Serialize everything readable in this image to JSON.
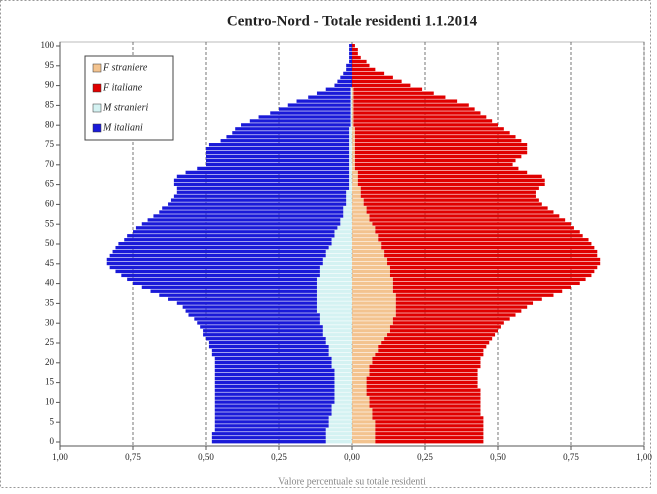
{
  "chart_data": {
    "type": "pyramid",
    "title": "Centro-Nord - Totale residenti 1.1.2014",
    "x_label": "Valore percentuale su totale residenti",
    "y": [
      0,
      1,
      2,
      3,
      4,
      5,
      6,
      7,
      8,
      9,
      10,
      11,
      12,
      13,
      14,
      15,
      16,
      17,
      18,
      19,
      20,
      21,
      22,
      23,
      24,
      25,
      26,
      27,
      28,
      29,
      30,
      31,
      32,
      33,
      34,
      35,
      36,
      37,
      38,
      39,
      40,
      41,
      42,
      43,
      44,
      45,
      46,
      47,
      48,
      49,
      50,
      51,
      52,
      53,
      54,
      55,
      56,
      57,
      58,
      59,
      60,
      61,
      62,
      63,
      64,
      65,
      66,
      67,
      68,
      69,
      70,
      71,
      72,
      73,
      74,
      75,
      76,
      77,
      78,
      79,
      80,
      81,
      82,
      83,
      84,
      85,
      86,
      87,
      88,
      89,
      90,
      91,
      92,
      93,
      94,
      95,
      96,
      97,
      98,
      99,
      100
    ],
    "series": [
      {
        "name": "F straniere",
        "color": "#f3c38f",
        "values": [
          0.08,
          0.08,
          0.08,
          0.08,
          0.08,
          0.08,
          0.07,
          0.07,
          0.07,
          0.06,
          0.06,
          0.06,
          0.05,
          0.05,
          0.05,
          0.05,
          0.05,
          0.06,
          0.06,
          0.06,
          0.07,
          0.07,
          0.08,
          0.09,
          0.09,
          0.1,
          0.11,
          0.12,
          0.13,
          0.13,
          0.14,
          0.14,
          0.15,
          0.15,
          0.15,
          0.15,
          0.15,
          0.15,
          0.14,
          0.14,
          0.14,
          0.14,
          0.13,
          0.13,
          0.13,
          0.12,
          0.12,
          0.11,
          0.11,
          0.1,
          0.1,
          0.09,
          0.09,
          0.08,
          0.08,
          0.07,
          0.06,
          0.06,
          0.05,
          0.05,
          0.04,
          0.04,
          0.03,
          0.03,
          0.03,
          0.02,
          0.02,
          0.02,
          0.02,
          0.01,
          0.01,
          0.01,
          0.01,
          0.01,
          0.01,
          0.01,
          0.01,
          0.01,
          0.01,
          0.01,
          0.005,
          0.005,
          0.005,
          0.005,
          0.005,
          0.005,
          0.005,
          0.005,
          0.005,
          0.005,
          0,
          0,
          0,
          0,
          0,
          0,
          0,
          0,
          0,
          0,
          0
        ]
      },
      {
        "name": "F italiane",
        "color": "#e00000",
        "values": [
          0.37,
          0.37,
          0.37,
          0.37,
          0.37,
          0.37,
          0.38,
          0.37,
          0.37,
          0.38,
          0.38,
          0.38,
          0.39,
          0.39,
          0.38,
          0.38,
          0.38,
          0.37,
          0.37,
          0.38,
          0.37,
          0.37,
          0.37,
          0.36,
          0.37,
          0.37,
          0.37,
          0.37,
          0.37,
          0.38,
          0.38,
          0.4,
          0.41,
          0.43,
          0.45,
          0.47,
          0.5,
          0.54,
          0.58,
          0.61,
          0.64,
          0.66,
          0.69,
          0.7,
          0.71,
          0.73,
          0.73,
          0.73,
          0.73,
          0.73,
          0.72,
          0.72,
          0.7,
          0.7,
          0.68,
          0.68,
          0.67,
          0.65,
          0.64,
          0.62,
          0.61,
          0.6,
          0.6,
          0.6,
          0.61,
          0.64,
          0.64,
          0.63,
          0.58,
          0.56,
          0.54,
          0.55,
          0.57,
          0.59,
          0.59,
          0.59,
          0.57,
          0.55,
          0.53,
          0.51,
          0.495,
          0.475,
          0.455,
          0.435,
          0.415,
          0.395,
          0.355,
          0.315,
          0.275,
          0.235,
          0.2,
          0.17,
          0.14,
          0.11,
          0.08,
          0.06,
          0.05,
          0.03,
          0.02,
          0.02,
          0.01
        ]
      },
      {
        "name": "M stranieri",
        "color": "#d4f2f2",
        "values": [
          -0.09,
          -0.09,
          -0.09,
          -0.09,
          -0.08,
          -0.08,
          -0.08,
          -0.07,
          -0.07,
          -0.07,
          -0.06,
          -0.06,
          -0.06,
          -0.06,
          -0.06,
          -0.06,
          -0.06,
          -0.06,
          -0.06,
          -0.07,
          -0.07,
          -0.07,
          -0.08,
          -0.08,
          -0.08,
          -0.09,
          -0.09,
          -0.1,
          -0.1,
          -0.1,
          -0.11,
          -0.11,
          -0.11,
          -0.12,
          -0.12,
          -0.12,
          -0.12,
          -0.12,
          -0.12,
          -0.12,
          -0.12,
          -0.12,
          -0.11,
          -0.11,
          -0.11,
          -0.1,
          -0.1,
          -0.09,
          -0.09,
          -0.08,
          -0.07,
          -0.07,
          -0.06,
          -0.06,
          -0.05,
          -0.04,
          -0.04,
          -0.03,
          -0.03,
          -0.03,
          -0.02,
          -0.02,
          -0.02,
          -0.02,
          -0.01,
          -0.01,
          -0.01,
          -0.01,
          -0.01,
          -0.01,
          -0.01,
          -0.01,
          -0.01,
          -0.01,
          -0.01,
          -0.01,
          -0.01,
          -0.01,
          -0.01,
          -0.01,
          -0.005,
          -0.005,
          -0.005,
          -0.005,
          -0.005,
          -0.005,
          -0.005,
          -0.005,
          -0.005,
          -0.005,
          0,
          0,
          0,
          0,
          0,
          0,
          0,
          0,
          0,
          0,
          0
        ]
      },
      {
        "name": "M italiani",
        "color": "#1a1ad8",
        "values": [
          -0.39,
          -0.39,
          -0.39,
          -0.38,
          -0.39,
          -0.39,
          -0.39,
          -0.4,
          -0.4,
          -0.4,
          -0.41,
          -0.41,
          -0.41,
          -0.41,
          -0.41,
          -0.41,
          -0.41,
          -0.41,
          -0.41,
          -0.4,
          -0.4,
          -0.4,
          -0.4,
          -0.4,
          -0.41,
          -0.4,
          -0.41,
          -0.41,
          -0.41,
          -0.42,
          -0.42,
          -0.43,
          -0.45,
          -0.45,
          -0.46,
          -0.48,
          -0.51,
          -0.54,
          -0.57,
          -0.6,
          -0.63,
          -0.65,
          -0.68,
          -0.7,
          -0.72,
          -0.74,
          -0.74,
          -0.74,
          -0.73,
          -0.73,
          -0.73,
          -0.71,
          -0.71,
          -0.69,
          -0.69,
          -0.68,
          -0.66,
          -0.65,
          -0.63,
          -0.62,
          -0.61,
          -0.6,
          -0.59,
          -0.58,
          -0.59,
          -0.6,
          -0.6,
          -0.59,
          -0.56,
          -0.52,
          -0.49,
          -0.49,
          -0.49,
          -0.49,
          -0.49,
          -0.48,
          -0.44,
          -0.42,
          -0.4,
          -0.39,
          -0.375,
          -0.345,
          -0.315,
          -0.275,
          -0.245,
          -0.215,
          -0.185,
          -0.145,
          -0.115,
          -0.085,
          -0.06,
          -0.05,
          -0.04,
          -0.03,
          -0.02,
          -0.02,
          -0.01,
          -0.01,
          -0.01,
          -0.01,
          -0.01
        ]
      }
    ],
    "xlim": [
      -1,
      1
    ],
    "xticks": [
      {
        "value": -1,
        "label": "1,00"
      },
      {
        "value": -0.75,
        "label": "0,75"
      },
      {
        "value": -0.5,
        "label": "0,50"
      },
      {
        "value": -0.25,
        "label": "0,25"
      },
      {
        "value": 0,
        "label": "0,00"
      },
      {
        "value": 0.25,
        "label": "0,25"
      },
      {
        "value": 0.5,
        "label": "0,50"
      },
      {
        "value": 0.75,
        "label": "0,75"
      },
      {
        "value": 1,
        "label": "1,00"
      }
    ],
    "ylim": [
      0,
      100
    ],
    "yticks": [
      0,
      5,
      10,
      15,
      20,
      25,
      30,
      35,
      40,
      45,
      50,
      55,
      60,
      65,
      70,
      75,
      80,
      85,
      90,
      95,
      100
    ],
    "grid": true,
    "legend": "upper-left"
  }
}
